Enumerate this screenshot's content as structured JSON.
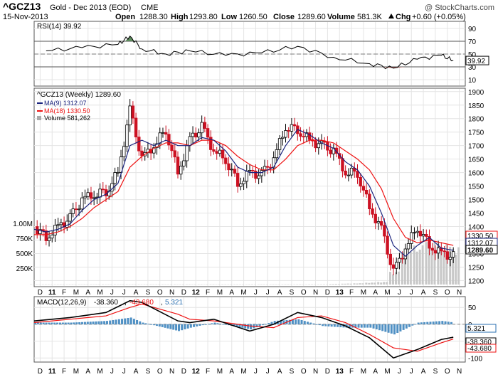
{
  "header": {
    "symbol": "^GCZ13",
    "name": "Gold - Dec 2013 (EOD)",
    "exchange": "CME",
    "date": "15-Nov-2013",
    "open_label": "Open",
    "open": "1288.30",
    "high_label": "High",
    "high": "1293.80",
    "low_label": "Low",
    "low": "1260.50",
    "close_label": "Close",
    "close": "1289.60",
    "volume_label": "Volume",
    "volume": "581.3K",
    "chg_label": "Chg",
    "chg": "+0.60 (+0.05%)",
    "chg_icon": "up-triangle-icon",
    "watermark": "@ StockCharts.com"
  },
  "colors": {
    "up_candle": "#ffffff",
    "down_candle": "#cc1122",
    "ma9": "#1a237e",
    "ma18": "#ee1111",
    "rsi_line": "#000000",
    "rsi_overbought_fill": "#5e8c5e",
    "rsi_oversold_fill": "#9c5a55",
    "volume_bar": "#c8c8c8",
    "histogram": "#4f90c4",
    "macd_line": "#000000",
    "signal_line": "#ee1111"
  },
  "chart_data": [
    {
      "type": "line",
      "panel": "rsi",
      "title": "RSI(14) 39.92",
      "yticks": [
        10,
        30,
        50,
        70,
        90
      ],
      "ylim": [
        0,
        100
      ],
      "reference_lines": [
        30,
        50,
        70
      ],
      "current_label": "39.92",
      "x": [
        "2011-01",
        "2011-04",
        "2011-07",
        "2011-08",
        "2011-09",
        "2011-11",
        "2012-01",
        "2012-04",
        "2012-07",
        "2012-10",
        "2013-01",
        "2013-04",
        "2013-06",
        "2013-08",
        "2013-10",
        "2013-11"
      ],
      "values": [
        55,
        60,
        65,
        78,
        58,
        50,
        55,
        48,
        52,
        62,
        45,
        35,
        28,
        42,
        48,
        39.92
      ]
    },
    {
      "type": "candlestick",
      "panel": "price",
      "title": "^GCZ13 (Weekly) 1289.60",
      "legend": [
        "MA(9) 1312.07",
        "MA(18) 1330.50",
        "Volume 581,262"
      ],
      "yticks": [
        1200,
        1250,
        1300,
        1350,
        1400,
        1450,
        1500,
        1550,
        1600,
        1650,
        1700,
        1750,
        1800,
        1850,
        1900
      ],
      "ylim": [
        1180,
        1910
      ],
      "price_tags": [
        "1330.50",
        "1312.07",
        "1289.60"
      ],
      "volume_ticks": [
        "1.00M",
        "750K",
        "500K",
        "250K"
      ],
      "close_path": {
        "x": [
          "2010-12",
          "2011-01",
          "2011-02",
          "2011-03",
          "2011-04",
          "2011-05",
          "2011-06",
          "2011-07",
          "2011-08",
          "2011-09",
          "2011-10",
          "2011-11",
          "2011-12",
          "2012-01",
          "2012-02",
          "2012-03",
          "2012-04",
          "2012-05",
          "2012-06",
          "2012-07",
          "2012-08",
          "2012-09",
          "2012-10",
          "2012-11",
          "2012-12",
          "2013-01",
          "2013-02",
          "2013-03",
          "2013-04",
          "2013-05",
          "2013-06",
          "2013-07",
          "2013-08",
          "2013-09",
          "2013-10",
          "2013-11"
        ],
        "values": [
          1400,
          1360,
          1400,
          1430,
          1500,
          1520,
          1530,
          1600,
          1830,
          1650,
          1700,
          1760,
          1600,
          1720,
          1770,
          1680,
          1650,
          1560,
          1600,
          1590,
          1650,
          1770,
          1760,
          1720,
          1700,
          1680,
          1600,
          1600,
          1470,
          1390,
          1230,
          1320,
          1400,
          1330,
          1300,
          1289.6
        ]
      },
      "ma9": [
        1390,
        1380,
        1390,
        1410,
        1460,
        1500,
        1520,
        1560,
        1700,
        1720,
        1700,
        1720,
        1700,
        1700,
        1730,
        1720,
        1680,
        1620,
        1600,
        1600,
        1620,
        1700,
        1760,
        1740,
        1710,
        1690,
        1640,
        1610,
        1550,
        1450,
        1330,
        1290,
        1330,
        1360,
        1320,
        1312.07
      ],
      "ma18": [
        1370,
        1370,
        1380,
        1400,
        1430,
        1470,
        1500,
        1530,
        1620,
        1660,
        1690,
        1710,
        1710,
        1700,
        1720,
        1720,
        1700,
        1660,
        1630,
        1610,
        1610,
        1650,
        1700,
        1720,
        1720,
        1710,
        1680,
        1650,
        1610,
        1540,
        1430,
        1360,
        1340,
        1350,
        1340,
        1330.5
      ],
      "volume": [
        5,
        5,
        5,
        5,
        5,
        5,
        5,
        5,
        5,
        5,
        5,
        5,
        5,
        5,
        5,
        5,
        5,
        5,
        5,
        5,
        5,
        5,
        5,
        5,
        5,
        10,
        15,
        20,
        30,
        40,
        200,
        500,
        600,
        650,
        620,
        581.262
      ]
    },
    {
      "type": "line",
      "panel": "macd",
      "title": "MACD(12,26,9)",
      "legend": [
        "-38.360",
        "-43.680",
        "5.321"
      ],
      "yticks": [
        50,
        0,
        -50,
        -100
      ],
      "ylim": [
        -110,
        80
      ],
      "current_labels": [
        "5.321",
        "-38.360",
        "-43.680"
      ],
      "x": [
        "2010-12",
        "2011-03",
        "2011-06",
        "2011-08",
        "2011-09",
        "2011-12",
        "2012-01",
        "2012-03",
        "2012-06",
        "2012-08",
        "2012-10",
        "2012-12",
        "2013-02",
        "2013-04",
        "2013-06",
        "2013-08",
        "2013-10",
        "2013-11"
      ],
      "macd": [
        10,
        20,
        35,
        70,
        65,
        10,
        5,
        15,
        -20,
        0,
        35,
        20,
        -5,
        -40,
        -100,
        -75,
        -45,
        -38.36
      ],
      "signal": [
        5,
        15,
        25,
        50,
        60,
        30,
        15,
        10,
        -5,
        -10,
        20,
        25,
        5,
        -30,
        -70,
        -80,
        -55,
        -43.68
      ],
      "histogram": [
        5,
        5,
        10,
        20,
        5,
        -20,
        -10,
        5,
        -15,
        10,
        15,
        -5,
        -10,
        -10,
        -30,
        5,
        10,
        5.321
      ]
    }
  ],
  "x_axis": {
    "labels": [
      "D",
      "11",
      "F",
      "M",
      "A",
      "M",
      "J",
      "J",
      "A",
      "S",
      "O",
      "N",
      "D",
      "12",
      "F",
      "M",
      "A",
      "M",
      "J",
      "J",
      "A",
      "S",
      "O",
      "N",
      "D",
      "13",
      "F",
      "M",
      "A",
      "M",
      "J",
      "J",
      "A",
      "S",
      "O",
      "N"
    ]
  }
}
